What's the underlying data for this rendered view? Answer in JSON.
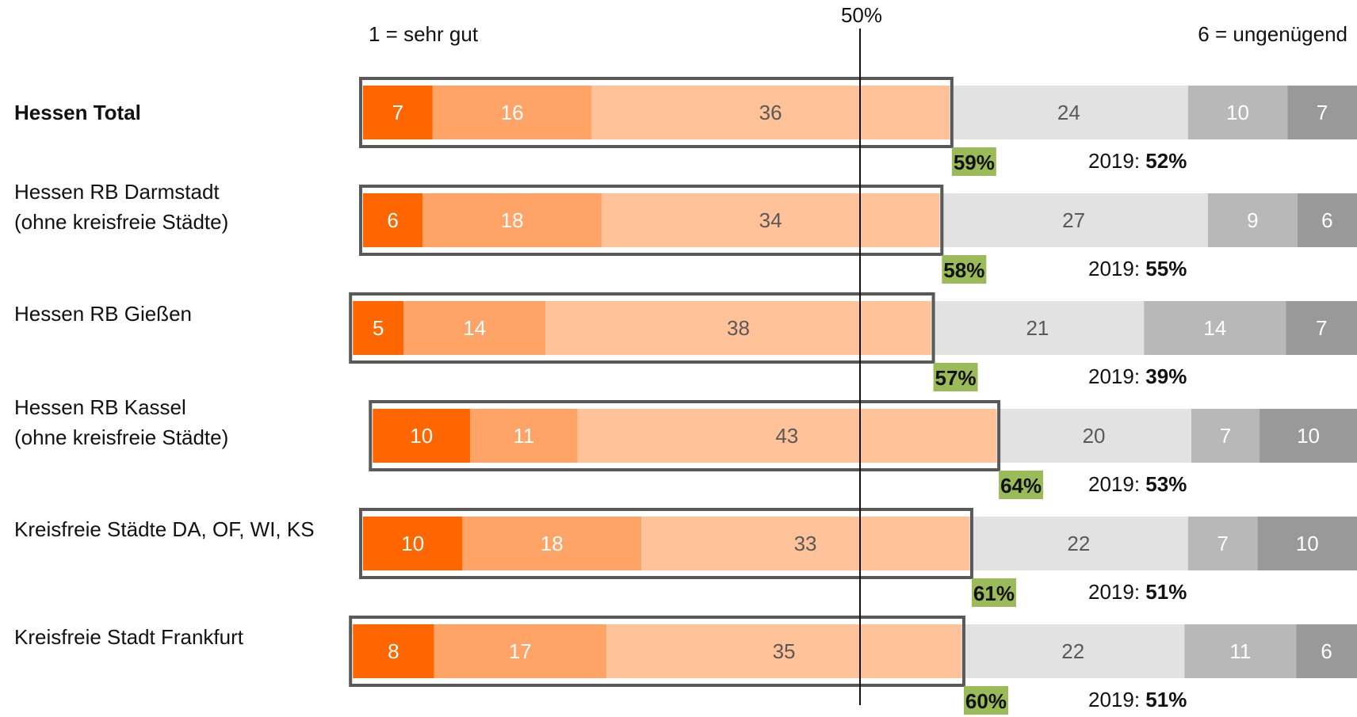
{
  "chart_data": {
    "type": "bar",
    "orientation": "horizontal",
    "stacked": true,
    "scale_low_label": "1 = sehr gut",
    "scale_high_label": "6 = ungenügend",
    "reference_line": {
      "value": 50,
      "label": "50%"
    },
    "prev_prefix": "2019:",
    "categories": [
      "Hessen Total",
      "Hessen RB Darmstadt (ohne kreisfreie Städte)",
      "Hessen RB Gießen",
      "Hessen RB Kassel (ohne kreisfreie Städte)",
      "Kreisfreie Städte DA, OF, WI, KS",
      "Kreisfreie Stadt Frankfurt"
    ],
    "rows": [
      {
        "label_lines": [
          "Hessen Total"
        ],
        "bold": true,
        "values": [
          7,
          16,
          36,
          24,
          10,
          7
        ],
        "top3": "59%",
        "prev": "52%"
      },
      {
        "label_lines": [
          "Hessen RB Darmstadt",
          "(ohne kreisfreie Städte)"
        ],
        "bold": false,
        "values": [
          6,
          18,
          34,
          27,
          9,
          6
        ],
        "top3": "58%",
        "prev": "55%"
      },
      {
        "label_lines": [
          "Hessen RB Gießen"
        ],
        "bold": false,
        "values": [
          5,
          14,
          38,
          21,
          14,
          7
        ],
        "top3": "57%",
        "prev": "39%"
      },
      {
        "label_lines": [
          "Hessen RB Kassel",
          "(ohne kreisfreie Städte)"
        ],
        "bold": false,
        "values": [
          10,
          11,
          43,
          20,
          7,
          10
        ],
        "top3": "64%",
        "prev": "53%"
      },
      {
        "label_lines": [
          "Kreisfreie Städte DA, OF, WI, KS"
        ],
        "bold": false,
        "values": [
          10,
          18,
          33,
          22,
          7,
          10
        ],
        "top3": "61%",
        "prev": "51%"
      },
      {
        "label_lines": [
          "Kreisfreie Stadt Frankfurt"
        ],
        "bold": false,
        "values": [
          8,
          17,
          35,
          22,
          11,
          6
        ],
        "top3": "60%",
        "prev": "51%"
      }
    ],
    "segment_colors": [
      "#ff6600",
      "#ffa366",
      "#ffc299",
      "#e2e2e2",
      "#b8b8b8",
      "#999999"
    ],
    "segment_text_colors": [
      "#ffffff",
      "#ffffff",
      "#595959",
      "#595959",
      "#ffffff",
      "#ffffff"
    ],
    "highlight_color": "#9bbb59",
    "box_color": "#595959",
    "xlim": [
      0,
      100
    ]
  }
}
